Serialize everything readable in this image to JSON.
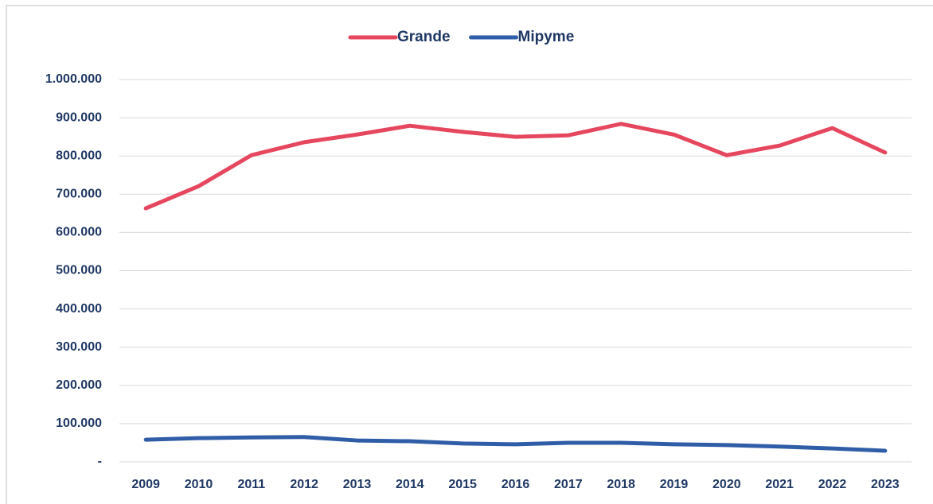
{
  "chart_data": {
    "type": "line",
    "categories": [
      "2009",
      "2010",
      "2011",
      "2012",
      "2013",
      "2014",
      "2015",
      "2016",
      "2017",
      "2018",
      "2019",
      "2020",
      "2021",
      "2022",
      "2023"
    ],
    "series": [
      {
        "name": "Grande",
        "color": "#e6475e",
        "values": [
          663000,
          721000,
          802000,
          836000,
          856000,
          879000,
          863000,
          850000,
          854000,
          884000,
          856000,
          802000,
          827000,
          873000,
          809000
        ]
      },
      {
        "name": "Mipyme",
        "color": "#2f5da8",
        "values": [
          58000,
          62000,
          64000,
          65000,
          56000,
          54000,
          48000,
          46000,
          50000,
          50000,
          46000,
          44000,
          40000,
          35000,
          29000
        ]
      }
    ],
    "ylim": [
      0,
      1000000
    ],
    "yticks": [
      {
        "value": 0,
        "label": "-"
      },
      {
        "value": 100000,
        "label": "100.000"
      },
      {
        "value": 200000,
        "label": "200.000"
      },
      {
        "value": 300000,
        "label": "300.000"
      },
      {
        "value": 400000,
        "label": "400.000"
      },
      {
        "value": 500000,
        "label": "500.000"
      },
      {
        "value": 600000,
        "label": "600.000"
      },
      {
        "value": 700000,
        "label": "700.000"
      },
      {
        "value": 800000,
        "label": "800.000"
      },
      {
        "value": 900000,
        "label": "900.000"
      },
      {
        "value": 1000000,
        "label": "1.000.000"
      }
    ],
    "grid": true,
    "legend": "top"
  }
}
